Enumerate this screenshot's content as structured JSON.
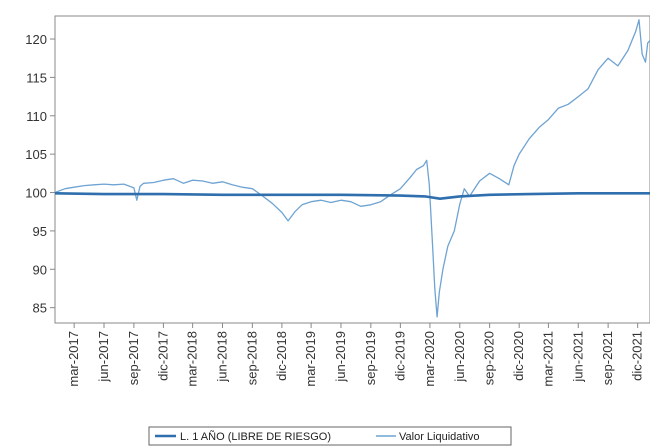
{
  "chart_data": {
    "type": "line",
    "title": "",
    "xlabel": "",
    "ylabel": "",
    "x_range": [
      "2017-01-01",
      "2022-01-08"
    ],
    "ylim": [
      83,
      123
    ],
    "grid": false,
    "y_ticks": [
      85,
      90,
      95,
      100,
      105,
      110,
      115,
      120
    ],
    "x_ticks": [
      {
        "date": "2017-03-01",
        "label": "mar-2017"
      },
      {
        "date": "2017-06-01",
        "label": "jun-2017"
      },
      {
        "date": "2017-09-01",
        "label": "sep-2017"
      },
      {
        "date": "2017-12-01",
        "label": "dic-2017"
      },
      {
        "date": "2018-03-01",
        "label": "mar-2018"
      },
      {
        "date": "2018-06-01",
        "label": "jun-2018"
      },
      {
        "date": "2018-09-01",
        "label": "sep-2018"
      },
      {
        "date": "2018-12-01",
        "label": "dic-2018"
      },
      {
        "date": "2019-03-01",
        "label": "mar-2019"
      },
      {
        "date": "2019-06-01",
        "label": "jun-2019"
      },
      {
        "date": "2019-09-01",
        "label": "sep-2019"
      },
      {
        "date": "2019-12-01",
        "label": "dic-2019"
      },
      {
        "date": "2020-03-01",
        "label": "mar-2020"
      },
      {
        "date": "2020-06-01",
        "label": "jun-2020"
      },
      {
        "date": "2020-09-01",
        "label": "sep-2020"
      },
      {
        "date": "2020-12-01",
        "label": "dic-2020"
      },
      {
        "date": "2021-03-01",
        "label": "mar-2021"
      },
      {
        "date": "2021-06-01",
        "label": "jun-2021"
      },
      {
        "date": "2021-09-01",
        "label": "sep-2021"
      },
      {
        "date": "2021-12-01",
        "label": "dic-2021"
      }
    ],
    "legend_position": "bottom",
    "series": [
      {
        "name": "L. 1 AÑO (LIBRE DE RIESGO)",
        "color": "#2f6fad",
        "width": 2.6,
        "points": [
          [
            "2017-01-01",
            99.9
          ],
          [
            "2017-06-01",
            99.8
          ],
          [
            "2017-12-01",
            99.8
          ],
          [
            "2018-06-01",
            99.7
          ],
          [
            "2018-12-01",
            99.7
          ],
          [
            "2019-06-01",
            99.7
          ],
          [
            "2019-12-01",
            99.6
          ],
          [
            "2020-02-15",
            99.5
          ],
          [
            "2020-04-01",
            99.2
          ],
          [
            "2020-06-01",
            99.5
          ],
          [
            "2020-09-01",
            99.7
          ],
          [
            "2021-01-01",
            99.8
          ],
          [
            "2021-06-01",
            99.9
          ],
          [
            "2022-01-08",
            99.9
          ]
        ]
      },
      {
        "name": "Valor Liquidativo",
        "color": "#6fa3d2",
        "width": 1.3,
        "points": [
          [
            "2017-01-01",
            100.0
          ],
          [
            "2017-02-01",
            100.5
          ],
          [
            "2017-03-01",
            100.7
          ],
          [
            "2017-04-01",
            100.9
          ],
          [
            "2017-05-01",
            101.0
          ],
          [
            "2017-06-01",
            101.1
          ],
          [
            "2017-07-01",
            101.0
          ],
          [
            "2017-08-01",
            101.1
          ],
          [
            "2017-09-01",
            100.6
          ],
          [
            "2017-09-10",
            99.0
          ],
          [
            "2017-09-20",
            100.8
          ],
          [
            "2017-10-01",
            101.2
          ],
          [
            "2017-11-01",
            101.3
          ],
          [
            "2017-12-01",
            101.6
          ],
          [
            "2018-01-01",
            101.8
          ],
          [
            "2018-02-01",
            101.2
          ],
          [
            "2018-03-01",
            101.6
          ],
          [
            "2018-04-01",
            101.5
          ],
          [
            "2018-05-01",
            101.2
          ],
          [
            "2018-06-01",
            101.4
          ],
          [
            "2018-07-01",
            101.0
          ],
          [
            "2018-08-01",
            100.7
          ],
          [
            "2018-09-01",
            100.5
          ],
          [
            "2018-10-01",
            99.6
          ],
          [
            "2018-11-01",
            98.6
          ],
          [
            "2018-12-01",
            97.4
          ],
          [
            "2018-12-20",
            96.3
          ],
          [
            "2019-01-10",
            97.5
          ],
          [
            "2019-02-01",
            98.4
          ],
          [
            "2019-03-01",
            98.8
          ],
          [
            "2019-04-01",
            99.0
          ],
          [
            "2019-05-01",
            98.7
          ],
          [
            "2019-06-01",
            99.0
          ],
          [
            "2019-07-01",
            98.8
          ],
          [
            "2019-08-01",
            98.2
          ],
          [
            "2019-09-01",
            98.4
          ],
          [
            "2019-10-01",
            98.8
          ],
          [
            "2019-11-01",
            99.7
          ],
          [
            "2019-12-01",
            100.5
          ],
          [
            "2020-01-01",
            102.0
          ],
          [
            "2020-01-20",
            103.0
          ],
          [
            "2020-02-10",
            103.5
          ],
          [
            "2020-02-20",
            104.2
          ],
          [
            "2020-02-28",
            101.0
          ],
          [
            "2020-03-08",
            94.0
          ],
          [
            "2020-03-16",
            87.5
          ],
          [
            "2020-03-23",
            83.8
          ],
          [
            "2020-03-30",
            87.0
          ],
          [
            "2020-04-10",
            90.0
          ],
          [
            "2020-04-25",
            93.0
          ],
          [
            "2020-05-15",
            95.0
          ],
          [
            "2020-06-01",
            98.5
          ],
          [
            "2020-06-15",
            100.5
          ],
          [
            "2020-07-01",
            99.5
          ],
          [
            "2020-08-01",
            101.5
          ],
          [
            "2020-09-01",
            102.5
          ],
          [
            "2020-10-01",
            101.8
          ],
          [
            "2020-10-30",
            101.0
          ],
          [
            "2020-11-15",
            103.5
          ],
          [
            "2020-12-01",
            105.0
          ],
          [
            "2021-01-01",
            107.0
          ],
          [
            "2021-02-01",
            108.5
          ],
          [
            "2021-03-01",
            109.5
          ],
          [
            "2021-04-01",
            111.0
          ],
          [
            "2021-05-01",
            111.5
          ],
          [
            "2021-06-01",
            112.5
          ],
          [
            "2021-07-01",
            113.5
          ],
          [
            "2021-08-01",
            116.0
          ],
          [
            "2021-09-01",
            117.5
          ],
          [
            "2021-10-01",
            116.5
          ],
          [
            "2021-11-01",
            118.5
          ],
          [
            "2021-11-25",
            121.0
          ],
          [
            "2021-12-05",
            122.5
          ],
          [
            "2021-12-15",
            118.0
          ],
          [
            "2021-12-25",
            117.0
          ],
          [
            "2022-01-01",
            119.5
          ],
          [
            "2022-01-08",
            119.8
          ]
        ]
      }
    ]
  }
}
